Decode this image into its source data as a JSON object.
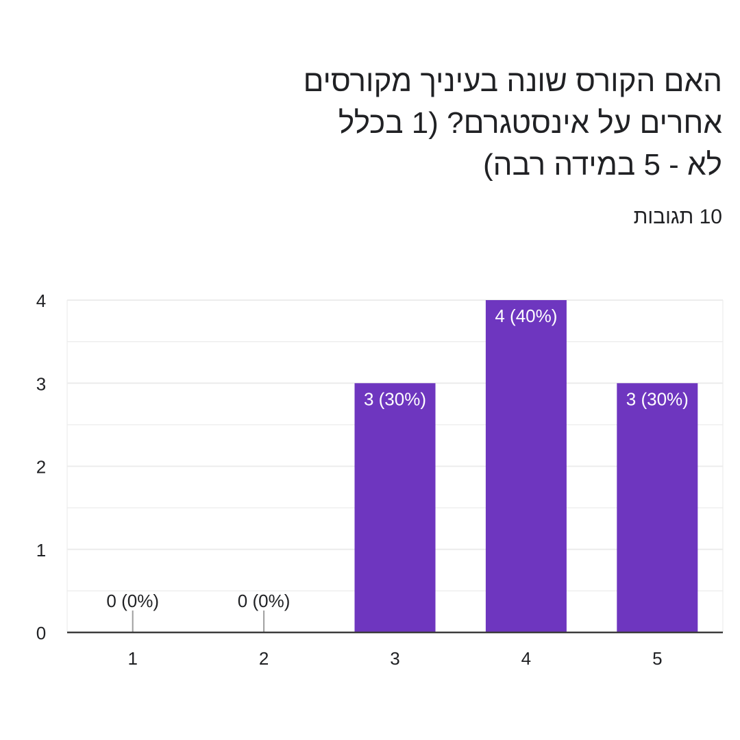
{
  "question": "האם הקורס שונה בעיניך מקורסים אחרים על אינסטגרם? (1 בכלל לא - 5 במידה רבה)",
  "responses_label": "10 תגובות",
  "colors": {
    "bar": "#6e36bf",
    "text": "#202124",
    "axis": "#3c3c3c",
    "grid": "#ececec",
    "zero_tick": "#9e9e9e"
  },
  "chart_data": {
    "type": "bar",
    "title": "האם הקורס שונה בעיניך מקורסים אחרים על אינסטגרם? (1 בכלל לא - 5 במידה רבה)",
    "subtitle": "10 תגובות",
    "categories": [
      "1",
      "2",
      "3",
      "4",
      "5"
    ],
    "values": [
      0,
      0,
      3,
      4,
      3
    ],
    "data_labels": [
      "0 (0%)",
      "0 (0%)",
      "3 (30%)",
      "4 (40%)",
      "3 (30%)"
    ],
    "y_ticks": [
      "0",
      "1",
      "2",
      "3",
      "4"
    ],
    "ylim": [
      0,
      4
    ],
    "xlabel": "",
    "ylabel": "",
    "grid": true
  }
}
